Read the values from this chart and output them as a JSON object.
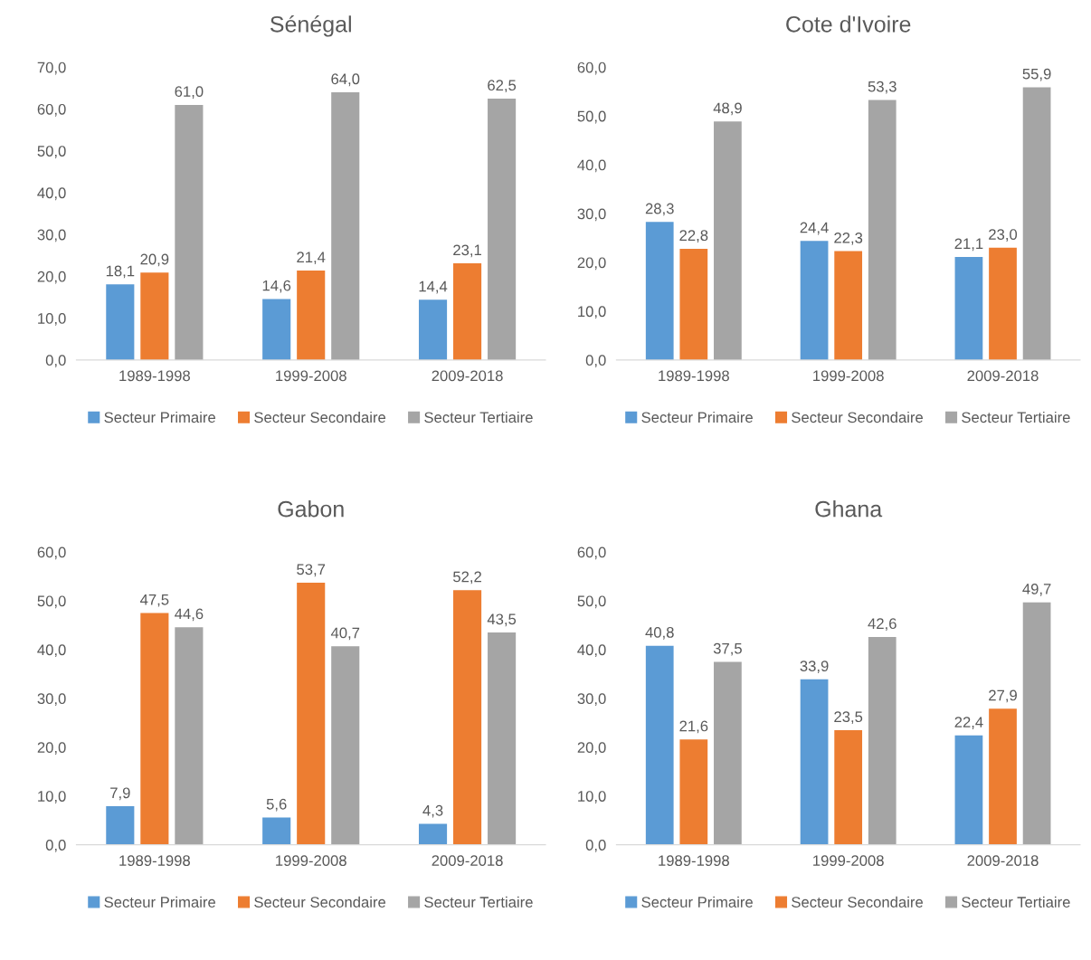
{
  "chart_data": [
    {
      "type": "bar",
      "title": "Sénégal",
      "categories": [
        "1989-1998",
        "1999-2008",
        "2009-2018"
      ],
      "ylim": [
        0,
        70
      ],
      "yticks": [
        {
          "value": 0,
          "label": "0,0"
        },
        {
          "value": 10,
          "label": "10,0"
        },
        {
          "value": 20,
          "label": "20,0"
        },
        {
          "value": 30,
          "label": "30,0"
        },
        {
          "value": 40,
          "label": "40,0"
        },
        {
          "value": 50,
          "label": "50,0"
        },
        {
          "value": 60,
          "label": "60,0"
        },
        {
          "value": 70,
          "label": "70,0"
        }
      ],
      "grid": false,
      "legend": "bottom",
      "series": [
        {
          "name": "Secteur Primaire",
          "color": "#5b9bd5",
          "values": [
            18.1,
            14.6,
            14.4
          ],
          "value_labels": [
            "18,1",
            "14,6",
            "14,4"
          ]
        },
        {
          "name": "Secteur Secondaire",
          "color": "#ed7d31",
          "values": [
            20.9,
            21.4,
            23.1
          ],
          "value_labels": [
            "20,9",
            "21,4",
            "23,1"
          ]
        },
        {
          "name": "Secteur Tertiaire",
          "color": "#a5a5a5",
          "values": [
            61.0,
            64.0,
            62.5
          ],
          "value_labels": [
            "61,0",
            "64,0",
            "62,5"
          ]
        }
      ]
    },
    {
      "type": "bar",
      "title": "Cote d'Ivoire",
      "categories": [
        "1989-1998",
        "1999-2008",
        "2009-2018"
      ],
      "ylim": [
        0,
        60
      ],
      "yticks": [
        {
          "value": 0,
          "label": "0,0"
        },
        {
          "value": 10,
          "label": "10,0"
        },
        {
          "value": 20,
          "label": "20,0"
        },
        {
          "value": 30,
          "label": "30,0"
        },
        {
          "value": 40,
          "label": "40,0"
        },
        {
          "value": 50,
          "label": "50,0"
        },
        {
          "value": 60,
          "label": "60,0"
        }
      ],
      "grid": false,
      "legend": "bottom",
      "series": [
        {
          "name": "Secteur Primaire",
          "color": "#5b9bd5",
          "values": [
            28.3,
            24.4,
            21.1
          ],
          "value_labels": [
            "28,3",
            "24,4",
            "21,1"
          ]
        },
        {
          "name": "Secteur Secondaire",
          "color": "#ed7d31",
          "values": [
            22.8,
            22.3,
            23.0
          ],
          "value_labels": [
            "22,8",
            "22,3",
            "23,0"
          ]
        },
        {
          "name": "Secteur Tertiaire",
          "color": "#a5a5a5",
          "values": [
            48.9,
            53.3,
            55.9
          ],
          "value_labels": [
            "48,9",
            "53,3",
            "55,9"
          ]
        }
      ]
    },
    {
      "type": "bar",
      "title": "Gabon",
      "categories": [
        "1989-1998",
        "1999-2008",
        "2009-2018"
      ],
      "ylim": [
        0,
        60
      ],
      "yticks": [
        {
          "value": 0,
          "label": "0,0"
        },
        {
          "value": 10,
          "label": "10,0"
        },
        {
          "value": 20,
          "label": "20,0"
        },
        {
          "value": 30,
          "label": "30,0"
        },
        {
          "value": 40,
          "label": "40,0"
        },
        {
          "value": 50,
          "label": "50,0"
        },
        {
          "value": 60,
          "label": "60,0"
        }
      ],
      "grid": false,
      "legend": "bottom",
      "series": [
        {
          "name": "Secteur Primaire",
          "color": "#5b9bd5",
          "values": [
            7.9,
            5.6,
            4.3
          ],
          "value_labels": [
            "7,9",
            "5,6",
            "4,3"
          ]
        },
        {
          "name": "Secteur Secondaire",
          "color": "#ed7d31",
          "values": [
            47.5,
            53.7,
            52.2
          ],
          "value_labels": [
            "47,5",
            "53,7",
            "52,2"
          ]
        },
        {
          "name": "Secteur Tertiaire",
          "color": "#a5a5a5",
          "values": [
            44.6,
            40.7,
            43.5
          ],
          "value_labels": [
            "44,6",
            "40,7",
            "43,5"
          ]
        }
      ]
    },
    {
      "type": "bar",
      "title": "Ghana",
      "categories": [
        "1989-1998",
        "1999-2008",
        "2009-2018"
      ],
      "ylim": [
        0,
        60
      ],
      "yticks": [
        {
          "value": 0,
          "label": "0,0"
        },
        {
          "value": 10,
          "label": "10,0"
        },
        {
          "value": 20,
          "label": "20,0"
        },
        {
          "value": 30,
          "label": "30,0"
        },
        {
          "value": 40,
          "label": "40,0"
        },
        {
          "value": 50,
          "label": "50,0"
        },
        {
          "value": 60,
          "label": "60,0"
        }
      ],
      "grid": false,
      "legend": "bottom",
      "series": [
        {
          "name": "Secteur Primaire",
          "color": "#5b9bd5",
          "values": [
            40.8,
            33.9,
            22.4
          ],
          "value_labels": [
            "40,8",
            "33,9",
            "22,4"
          ]
        },
        {
          "name": "Secteur Secondaire",
          "color": "#ed7d31",
          "values": [
            21.6,
            23.5,
            27.9
          ],
          "value_labels": [
            "21,6",
            "23,5",
            "27,9"
          ]
        },
        {
          "name": "Secteur Tertiaire",
          "color": "#a5a5a5",
          "values": [
            37.5,
            42.6,
            49.7
          ],
          "value_labels": [
            "37,5",
            "42,6",
            "49,7"
          ]
        }
      ]
    }
  ]
}
